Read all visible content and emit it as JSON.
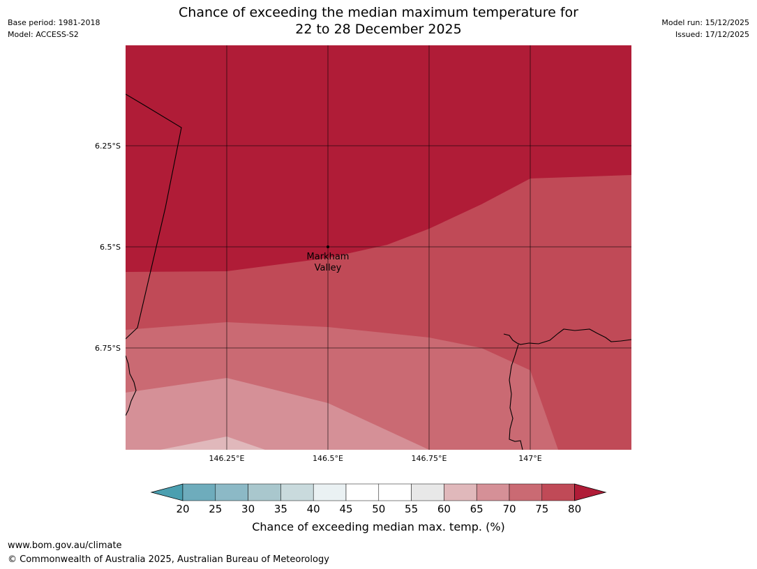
{
  "header": {
    "base_period": "Base period: 1981-2018",
    "model": "Model: ACCESS-S2",
    "model_run": "Model run: 15/12/2025",
    "issued": "Issued: 17/12/2025",
    "title_line1": "Chance of exceeding the median maximum temperature for",
    "title_line2": "22 to 28 December 2025"
  },
  "map": {
    "lat_labels": [
      "6.25°S",
      "6.5°S",
      "6.75°S"
    ],
    "lon_labels": [
      "146.25°E",
      "146.5°E",
      "146.75°E",
      "147°E"
    ],
    "place": {
      "line1": "Markham",
      "line2": "Valley"
    },
    "band_colors": {
      "80plus": "#b01c37",
      "75_80": "#c04a57",
      "70_75": "#ca6a73",
      "65_70": "#d59097",
      "60_65": "#e0b8bb"
    }
  },
  "colorbar": {
    "ticks": [
      "20",
      "25",
      "30",
      "35",
      "40",
      "45",
      "50",
      "55",
      "60",
      "65",
      "70",
      "75",
      "80"
    ],
    "colors": [
      "#4b9fb0",
      "#6eacbc",
      "#8cb9c6",
      "#a9c7cd",
      "#c9dadd",
      "#eaf1f3",
      "#ffffff",
      "#ffffff",
      "#e8e8e8",
      "#e0b8bb",
      "#d59097",
      "#ca6a73",
      "#c04a57",
      "#b01c37"
    ],
    "label": "Chance of exceeding median max. temp. (%)"
  },
  "footer": {
    "url": "www.bom.gov.au/climate",
    "copyright": "© Commonwealth of Australia 2025, Australian Bureau of Meteorology"
  }
}
